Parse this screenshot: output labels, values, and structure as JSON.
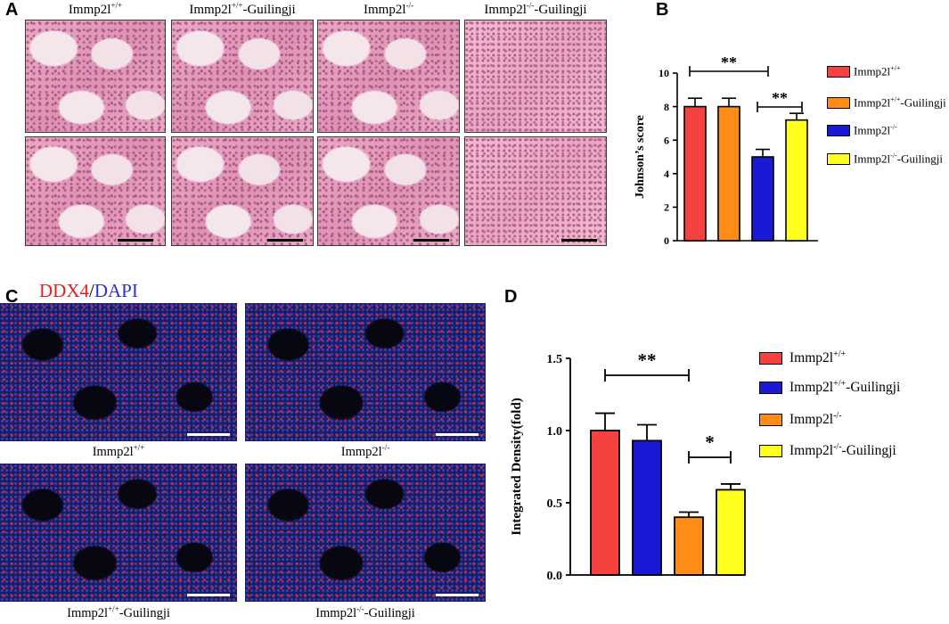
{
  "panel_labels": {
    "a": "A",
    "b": "B",
    "c": "C",
    "d": "D"
  },
  "panel_a": {
    "column_headers": [
      {
        "base": "Immp2l",
        "sup": "+/+",
        "suffix": ""
      },
      {
        "base": "Immp2l",
        "sup": "+/+",
        "suffix": "-Guilingji"
      },
      {
        "base": "Immp2l",
        "sup": "-/-",
        "suffix": ""
      },
      {
        "base": "Immp2l",
        "sup": "-/-",
        "suffix": "-Guilingji"
      }
    ]
  },
  "panel_c": {
    "stain_title": {
      "part1": "DDX4",
      "sep": "/",
      "part2": "DAPI",
      "color1": "#e0201e",
      "color2": "#2a32c8"
    },
    "captions": [
      {
        "base": "Immp2l",
        "sup": "+/+",
        "suffix": ""
      },
      {
        "base": "Immp2l",
        "sup": "-/-",
        "suffix": ""
      },
      {
        "base": "Immp2l",
        "sup": "+/+",
        "suffix": "-Guilingji"
      },
      {
        "base": "Immp2l",
        "sup": "-/-",
        "suffix": "-Guilingji"
      }
    ]
  },
  "chart_data": [
    {
      "type": "bar",
      "panel": "B",
      "categories": [
        "Immp2l+/+",
        "Immp2l+/+-Guilingji",
        "Immp2l-/-",
        "Immp2l-/--Guilingji"
      ],
      "values": [
        8.0,
        8.0,
        5.0,
        7.2
      ],
      "errors": [
        0.5,
        0.5,
        0.45,
        0.4
      ],
      "colors": [
        "#f5413f",
        "#ff8c17",
        "#1a1ad6",
        "#ffff1e"
      ],
      "ylabel": "Johnson’s score",
      "ylim": [
        0,
        10
      ],
      "yticks": [
        0,
        2,
        4,
        6,
        8,
        10
      ],
      "legend": [
        {
          "base": "Immp2l",
          "sup": "+/+",
          "suffix": "",
          "color": "#f5413f"
        },
        {
          "base": "Immp2l",
          "sup": "+/+",
          "suffix": "-Guilingji",
          "color": "#ff8c17"
        },
        {
          "base": "Immp2l",
          "sup": "-/-",
          "suffix": "",
          "color": "#1a1ad6"
        },
        {
          "base": "Immp2l",
          "sup": "-/-",
          "suffix": "-Guilingji",
          "color": "#ffff1e"
        }
      ],
      "legend_placement": "right",
      "significance": [
        {
          "from": 0,
          "to": 2,
          "label": "**"
        },
        {
          "from": 2,
          "to": 3,
          "label": "**"
        }
      ]
    },
    {
      "type": "bar",
      "panel": "D",
      "categories": [
        "Immp2l+/+",
        "Immp2l+/+-Guilingji",
        "Immp2l-/-",
        "Immp2l-/--Guilingji"
      ],
      "values": [
        1.0,
        0.93,
        0.4,
        0.59
      ],
      "errors": [
        0.12,
        0.11,
        0.035,
        0.04
      ],
      "colors": [
        "#f5413f",
        "#1a1ad6",
        "#ff8c17",
        "#ffff1e"
      ],
      "ylabel": "Integrated Density(fold)",
      "ylim": [
        0,
        1.5
      ],
      "yticks": [
        "0.0",
        "0.5",
        "1.0",
        "1.5"
      ],
      "legend": [
        {
          "base": "Immp2l",
          "sup": "+/+",
          "suffix": "",
          "color": "#f5413f"
        },
        {
          "base": "Immp2l",
          "sup": "+/+",
          "suffix": "-Guilingji",
          "color": "#1a1ad6"
        },
        {
          "base": "Immp2l",
          "sup": "-/-",
          "suffix": "",
          "color": "#ff8c17"
        },
        {
          "base": "Immp2l",
          "sup": "-/-",
          "suffix": "-Guilingji",
          "color": "#ffff1e"
        }
      ],
      "legend_placement": "right",
      "significance": [
        {
          "from": 0,
          "to": 2,
          "label": "**"
        },
        {
          "from": 2,
          "to": 3,
          "label": "*"
        }
      ]
    }
  ]
}
